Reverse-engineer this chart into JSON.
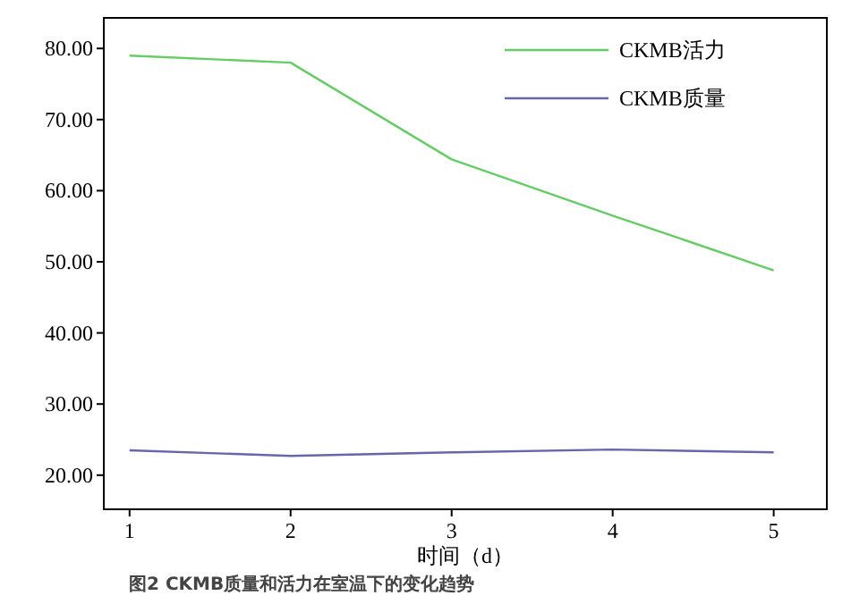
{
  "chart_data": {
    "type": "line",
    "xlabel": "时间（d）",
    "x": [
      1,
      2,
      3,
      4,
      5
    ],
    "series": [
      {
        "name": "CKMB活力",
        "color": "#66cc66",
        "values": [
          79.0,
          78.0,
          64.4,
          56.5,
          48.8
        ]
      },
      {
        "name": "CKMB质量",
        "color": "#6666aa",
        "values": [
          23.5,
          22.7,
          23.2,
          23.6,
          23.2
        ]
      }
    ],
    "xlim": [
      0.84,
      5.33
    ],
    "ylim": [
      15.2,
      84.3
    ],
    "xticks": [
      1,
      2,
      3,
      4,
      5
    ],
    "yticks": [
      {
        "value": 20,
        "label": "20.00"
      },
      {
        "value": 30,
        "label": "30.00"
      },
      {
        "value": 40,
        "label": "40.00"
      },
      {
        "value": 50,
        "label": "50.00"
      },
      {
        "value": 60,
        "label": "60.00"
      },
      {
        "value": 70,
        "label": "70.00"
      },
      {
        "value": 80,
        "label": "80.00"
      }
    ],
    "legend": "top right",
    "annotations": [
      "图2 CKMB质量和活力在室温下的变化趋势"
    ]
  }
}
